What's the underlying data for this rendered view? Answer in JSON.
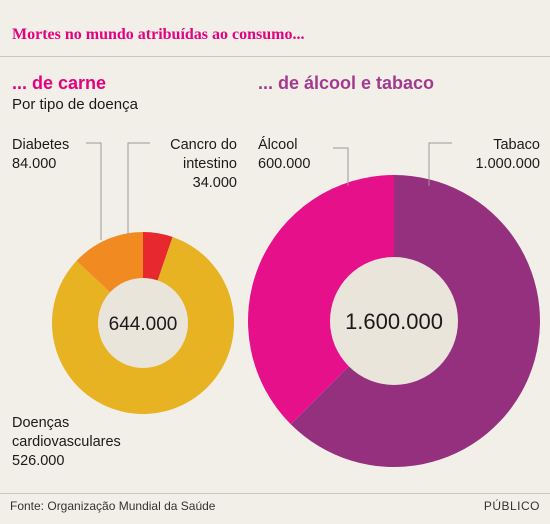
{
  "title": "Mortes no mundo atribuídas ao consumo...",
  "colors": {
    "diabetes": "#f28a22",
    "intestino": "#e8282f",
    "cardio": "#e7b322",
    "alcool": "#e5108a",
    "tabaco": "#95307f",
    "center": "#eae5da"
  },
  "chart_data": [
    {
      "type": "pie",
      "title": "... de carne",
      "subtitle": "Por tipo de doença",
      "total_label": "644.000",
      "slices": [
        {
          "name": "Cancro do intestino",
          "value": 34000,
          "value_label": "34.000"
        },
        {
          "name": "Doenças cardiovasculares",
          "value": 526000,
          "value_label": "526.000"
        },
        {
          "name": "Diabetes",
          "value": 84000,
          "value_label": "84.000"
        }
      ]
    },
    {
      "type": "pie",
      "title": "... de álcool e tabaco",
      "total_label": "1.600.000",
      "slices": [
        {
          "name": "Tabaco",
          "value": 1000000,
          "value_label": "1.000.000"
        },
        {
          "name": "Álcool",
          "value": 600000,
          "value_label": "600.000"
        }
      ]
    }
  ],
  "labels": {
    "diabetes": "Diabetes",
    "intestino_l1": "Cancro do",
    "intestino_l2": "intestino",
    "cardio_l1": "Doenças",
    "cardio_l2": "cardiovasculares",
    "alcool": "Álcool",
    "tabaco": "Tabaco"
  },
  "footer": {
    "source": "Fonte: Organização Mundial da Saúde",
    "brand": "PÚBLICO"
  }
}
